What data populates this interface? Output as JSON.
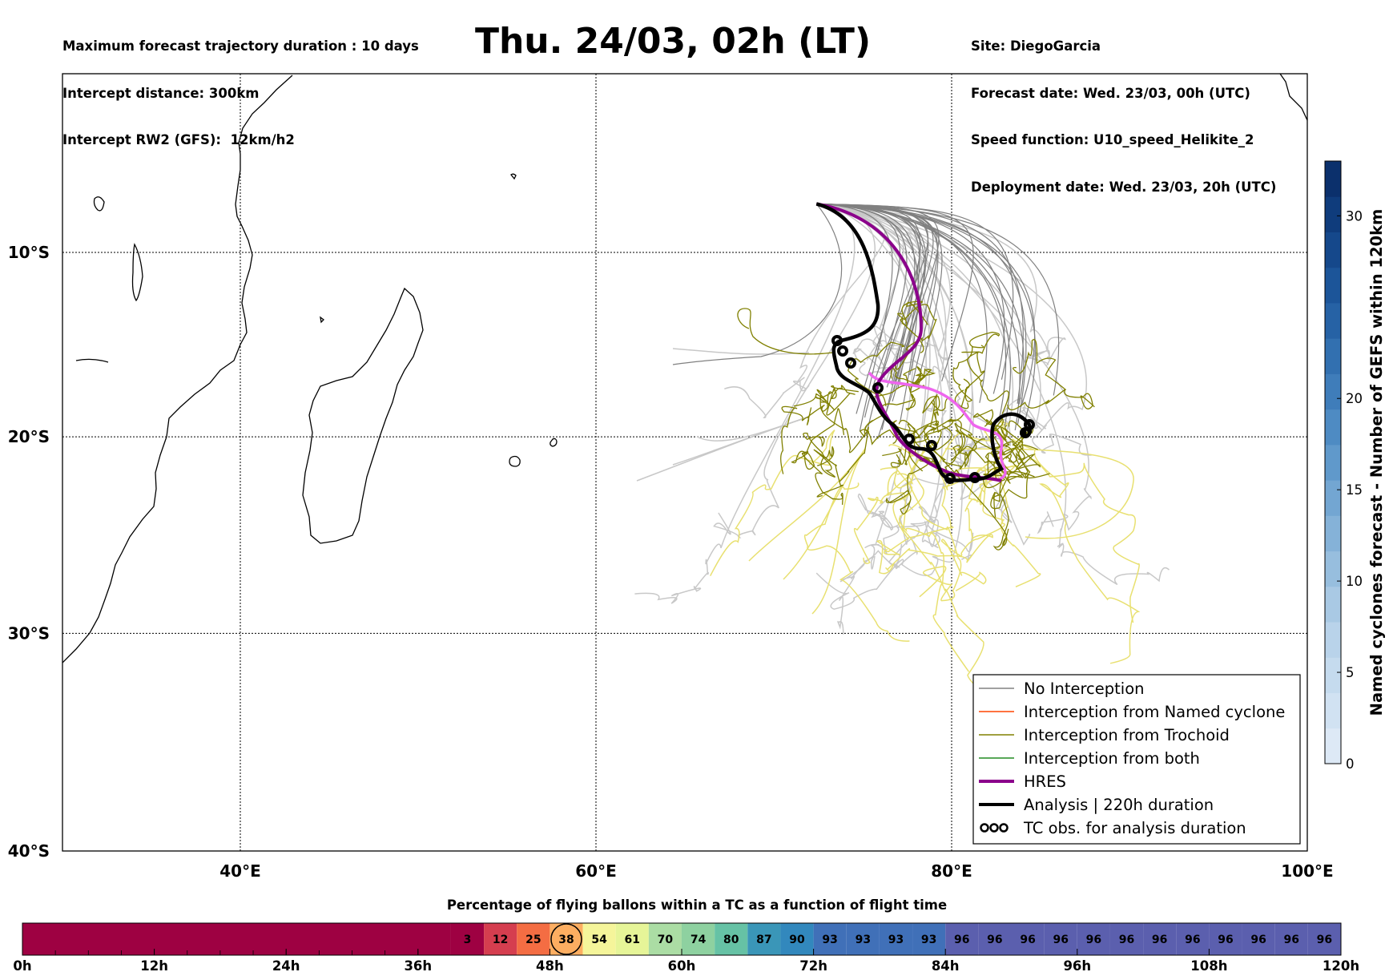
{
  "header": {
    "left_lines": [
      "Maximum forecast trajectory duration : 10 days",
      "Intercept distance: 300km",
      "Intercept RW2 (GFS):  12km/h2"
    ],
    "title": "Thu. 24/03, 02h (LT)",
    "right_lines": [
      "Site: DiegoGarcia",
      "Forecast date: Wed. 23/03, 00h (UTC)",
      "Speed function: U10_speed_Helikite_2",
      "Deployment date: Wed. 23/03, 20h (UTC)"
    ]
  },
  "map": {
    "lon_range": [
      30,
      100
    ],
    "lat_range": [
      -40,
      0
    ],
    "lon_ticks": [
      {
        "value": 40,
        "label": "40°E"
      },
      {
        "value": 60,
        "label": "60°E"
      },
      {
        "value": 80,
        "label": "80°E"
      },
      {
        "value": 100,
        "label": "100°E"
      }
    ],
    "lat_ticks": [
      {
        "value": -10,
        "label": "10°S"
      },
      {
        "value": -20,
        "label": "20°S"
      },
      {
        "value": -30,
        "label": "30°S"
      },
      {
        "value": -40,
        "label": "40°S"
      }
    ],
    "launch_site": {
      "lon": 72.4,
      "lat": -7.3
    },
    "colors": {
      "no_interception": "#808080",
      "named_cyclone": "#ff4500",
      "trochoid": "#808000",
      "both": "#228b22",
      "hres": "#8b008b",
      "analysis": "#000000",
      "light_grey": "#c8c8c8",
      "yellow": "#e8e070",
      "pink": "#ee66ee"
    }
  },
  "legend": {
    "items": [
      {
        "label": "No Interception",
        "color": "#808080",
        "style": "thin"
      },
      {
        "label": "Interception from Named cyclone",
        "color": "#ff4500",
        "style": "thin"
      },
      {
        "label": "Interception from Trochoid",
        "color": "#808000",
        "style": "thin"
      },
      {
        "label": "Interception from both",
        "color": "#228b22",
        "style": "thin"
      },
      {
        "label": "HRES",
        "color": "#8b008b",
        "style": "thick"
      },
      {
        "label": "Analysis | 220h duration",
        "color": "#000000",
        "style": "thick"
      },
      {
        "label": "TC obs. for analysis duration",
        "color": "#000000",
        "style": "loops"
      }
    ]
  },
  "right_colorbar": {
    "label": "Named cyclones forecast - Number of GEFS within 120km",
    "ticks": [
      "0",
      "5",
      "10",
      "15",
      "20",
      "30"
    ]
  },
  "bottom_colorbar": {
    "title": "Percentage of flying ballons within a TC as a function of flight time",
    "time_labels": [
      "0h",
      "12h",
      "24h",
      "36h",
      "48h",
      "60h",
      "72h",
      "84h",
      "96h",
      "108h",
      "120h"
    ],
    "values": [
      "3",
      "12",
      "25",
      "38",
      "54",
      "61",
      "70",
      "74",
      "80",
      "87",
      "90",
      "93",
      "93",
      "93",
      "93",
      "96",
      "96",
      "96",
      "96",
      "96",
      "96",
      "96",
      "96",
      "96",
      "96",
      "96",
      "96"
    ],
    "highlighted": "38",
    "colors": [
      "#9e0142",
      "#d53e4f",
      "#f46d43",
      "#fdae61",
      "#f5f59a",
      "#e6f598",
      "#abdda4",
      "#8ed1a0",
      "#66c2a5",
      "#3a96b8",
      "#3288bd",
      "#4070b8",
      "#4070b8",
      "#4070b8",
      "#4070b8",
      "#5b5fae",
      "#5b5fae",
      "#5b5fae",
      "#5b5fae",
      "#5b5fae",
      "#5b5fae",
      "#5b5fae",
      "#5b5fae",
      "#5b5fae",
      "#5b5fae",
      "#5b5fae",
      "#5b5fae"
    ],
    "zero_color": "#9e0142"
  }
}
